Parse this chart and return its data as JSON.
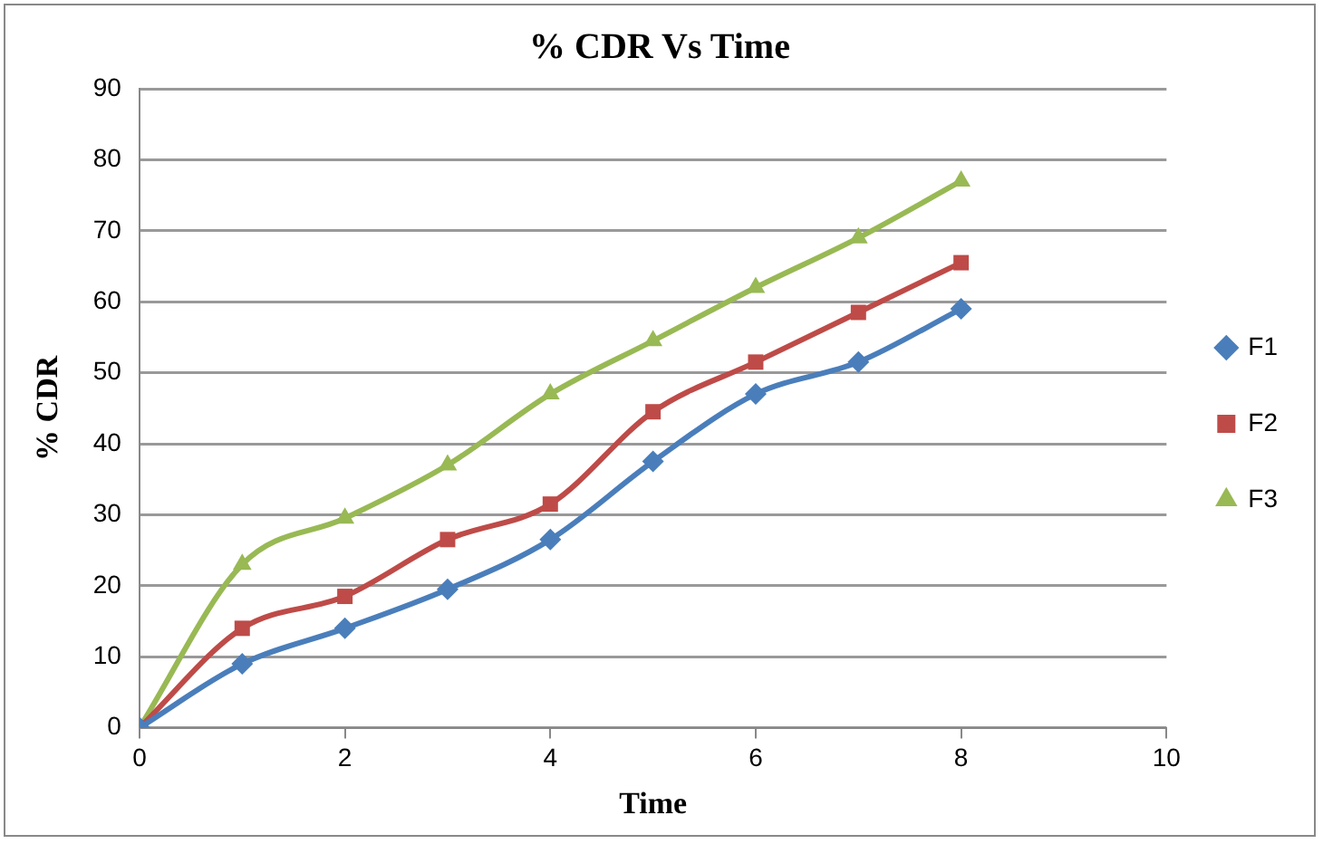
{
  "chart_data": {
    "type": "line",
    "title": "% CDR Vs Time",
    "xlabel": "Time",
    "ylabel": "% CDR",
    "x": [
      0,
      1,
      2,
      3,
      4,
      5,
      6,
      7,
      8
    ],
    "series": [
      {
        "name": "F1",
        "color": "#4a7ebb",
        "marker": "diamond",
        "values": [
          0,
          9,
          14,
          19.5,
          26.5,
          37.5,
          47,
          51.5,
          59
        ]
      },
      {
        "name": "F2",
        "color": "#be4b48",
        "marker": "square",
        "values": [
          0,
          14,
          18.5,
          26.5,
          31.5,
          44.5,
          51.5,
          58.5,
          65.5
        ]
      },
      {
        "name": "F3",
        "color": "#98b954",
        "marker": "triangle",
        "values": [
          0,
          23,
          29.5,
          37,
          47,
          54.5,
          62,
          69,
          77
        ]
      }
    ],
    "xlim": [
      0,
      10
    ],
    "xticks": [
      0,
      2,
      4,
      6,
      8,
      10
    ],
    "ylim": [
      0,
      90
    ],
    "yticks": [
      0,
      10,
      20,
      30,
      40,
      50,
      60,
      70,
      80,
      90
    ],
    "grid": "y",
    "legend": "right"
  }
}
